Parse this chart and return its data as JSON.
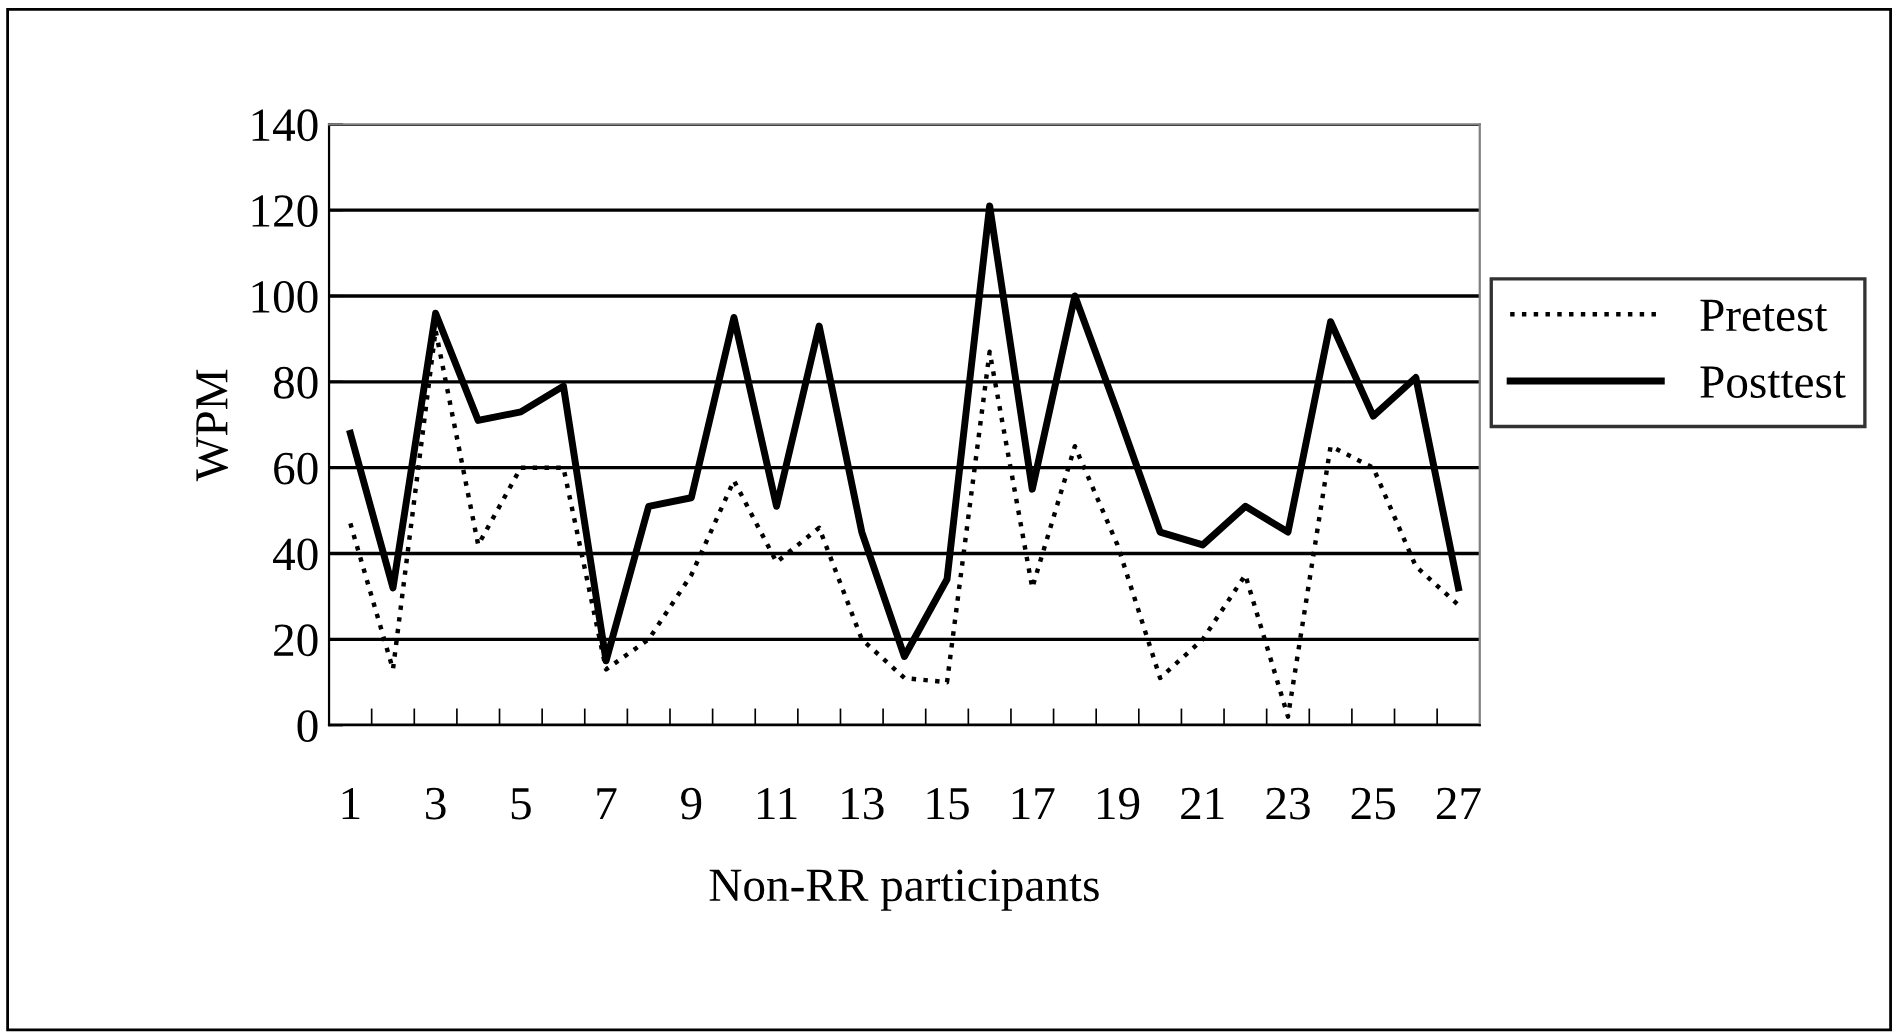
{
  "chart_data": {
    "type": "line",
    "xlabel": "Non-RR participants",
    "ylabel": "WPM",
    "categories": [
      "1",
      null,
      "3",
      null,
      "5",
      null,
      "7",
      null,
      "9",
      null,
      "11",
      null,
      "13",
      null,
      "15",
      null,
      "17",
      null,
      "19",
      null,
      "21",
      null,
      "23",
      null,
      "25",
      null,
      "27"
    ],
    "series": [
      {
        "name": "Pretest",
        "color": "#000000",
        "line_style": "dotted",
        "values": [
          47,
          13,
          92,
          42,
          60,
          60,
          13,
          20,
          35,
          57,
          38,
          46,
          20,
          11,
          10,
          87,
          32,
          65,
          42,
          11,
          20,
          35,
          2,
          65,
          60,
          37,
          28
        ]
      },
      {
        "name": "Posttest",
        "color": "#000000",
        "line_style": "solid",
        "values": [
          68,
          32,
          96,
          71,
          73,
          79,
          15,
          51,
          53,
          95,
          51,
          93,
          45,
          16,
          34,
          121,
          55,
          100,
          73,
          45,
          42,
          51,
          45,
          94,
          72,
          81,
          32
        ]
      }
    ],
    "ylim": [
      0,
      140
    ],
    "yticks": [
      0,
      20,
      40,
      60,
      80,
      100,
      120,
      140
    ],
    "grid": "y",
    "legend": "right",
    "marker": "none"
  }
}
